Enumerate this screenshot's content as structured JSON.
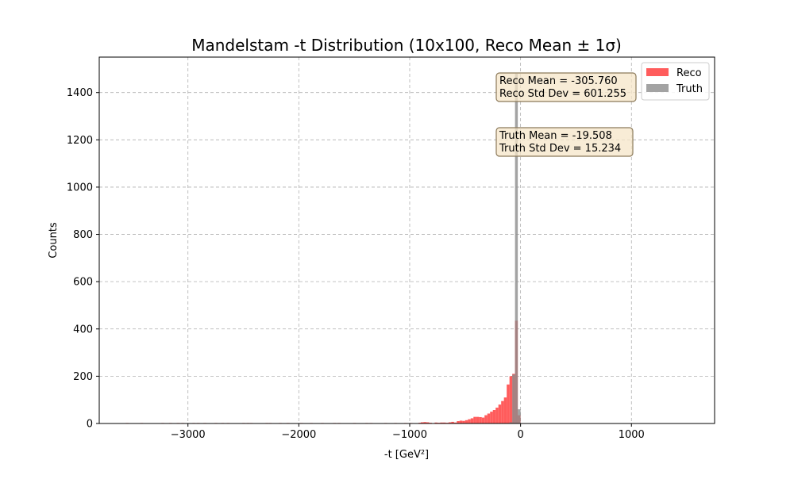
{
  "chart_data": {
    "type": "histogram",
    "title": "Mandelstam -t Distribution (10x100, Reco Mean ± 1σ)",
    "xlabel": "-t [GeV²]",
    "ylabel": "Counts",
    "xlim": [
      -3800,
      1750
    ],
    "ylim": [
      0,
      1550
    ],
    "xticks": [
      -3000,
      -2000,
      -1000,
      0,
      1000
    ],
    "xtick_labels": [
      "−3000",
      "−2000",
      "−1000",
      "0",
      "1000"
    ],
    "yticks": [
      0,
      200,
      400,
      600,
      800,
      1000,
      1200,
      1400
    ],
    "ytick_labels": [
      "0",
      "200",
      "400",
      "600",
      "800",
      "1000",
      "1200",
      "1400"
    ],
    "grid": true,
    "legend_position": "top-right",
    "colors": {
      "reco": "#ff3333",
      "truth": "#8c8c8c",
      "annotation_bg": "#f5e6c8",
      "annotation_border": "#8c7a5a"
    },
    "series": [
      {
        "name": "Reco",
        "bin_width": 25,
        "bins": [
          [
            -3560,
            2
          ],
          [
            -3430,
            2
          ],
          [
            -3240,
            2
          ],
          [
            -3170,
            2
          ],
          [
            -3100,
            2
          ],
          [
            -3060,
            2
          ],
          [
            -2960,
            2
          ],
          [
            -2920,
            2
          ],
          [
            -2860,
            2
          ],
          [
            -2760,
            2
          ],
          [
            -2700,
            2
          ],
          [
            -2650,
            2
          ],
          [
            -2510,
            2
          ],
          [
            -2470,
            2
          ],
          [
            -2440,
            2
          ],
          [
            -2300,
            2
          ],
          [
            -2270,
            2
          ],
          [
            -2180,
            2
          ],
          [
            -2110,
            2
          ],
          [
            -1990,
            2
          ],
          [
            -1900,
            2
          ],
          [
            -1800,
            2
          ],
          [
            -1690,
            2
          ],
          [
            -1650,
            2
          ],
          [
            -1510,
            2
          ],
          [
            -1400,
            2
          ],
          [
            -1360,
            2
          ],
          [
            -1230,
            2
          ],
          [
            -1140,
            2
          ],
          [
            -1050,
            2
          ],
          [
            -1000,
            2
          ],
          [
            -920,
            3
          ],
          [
            -900,
            5
          ],
          [
            -875,
            6
          ],
          [
            -850,
            5
          ],
          [
            -825,
            3
          ],
          [
            -775,
            4
          ],
          [
            -750,
            3
          ],
          [
            -725,
            4
          ],
          [
            -700,
            4
          ],
          [
            -675,
            3
          ],
          [
            -650,
            5
          ],
          [
            -625,
            7
          ],
          [
            -600,
            4
          ],
          [
            -575,
            10
          ],
          [
            -550,
            12
          ],
          [
            -525,
            11
          ],
          [
            -500,
            14
          ],
          [
            -475,
            18
          ],
          [
            -450,
            22
          ],
          [
            -425,
            28
          ],
          [
            -400,
            28
          ],
          [
            -375,
            27
          ],
          [
            -350,
            25
          ],
          [
            -325,
            35
          ],
          [
            -300,
            42
          ],
          [
            -275,
            50
          ],
          [
            -250,
            57
          ],
          [
            -225,
            67
          ],
          [
            -200,
            80
          ],
          [
            -175,
            95
          ],
          [
            -150,
            110
          ],
          [
            -125,
            165
          ],
          [
            -100,
            200
          ],
          [
            -75,
            210
          ],
          [
            -50,
            435
          ],
          [
            -25,
            35
          ]
        ]
      },
      {
        "name": "Truth",
        "bin_width": 25,
        "bins": [
          [
            -100,
            5
          ],
          [
            -75,
            207
          ],
          [
            -50,
            1480
          ],
          [
            -25,
            60
          ]
        ]
      }
    ],
    "annotations": [
      {
        "lines": [
          "Reco Mean = -305.760",
          "Reco Std Dev = 601.255"
        ]
      },
      {
        "lines": [
          "Truth Mean = -19.508",
          "Truth Std Dev = 15.234"
        ]
      }
    ]
  }
}
